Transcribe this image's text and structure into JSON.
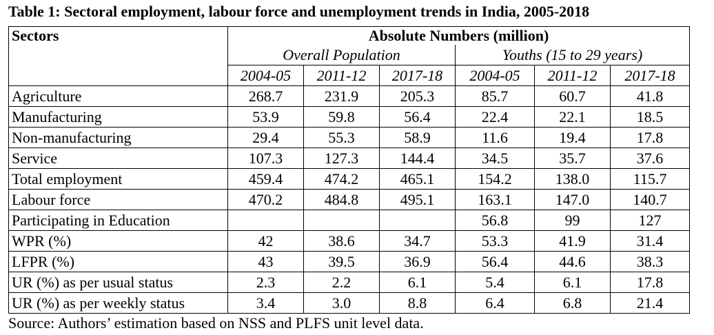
{
  "header": {
    "title": "Table 1: Sectoral employment, labour force and unemployment trends in India, 2005-2018"
  },
  "table": {
    "row_header": "Sectors",
    "group": "Absolute Numbers (million)",
    "subgroups": [
      "Overall Population",
      "Youths (15 to 29 years)"
    ],
    "years": [
      "2004-05",
      "2011-12",
      "2017-18",
      "2004-05",
      "2011-12",
      "2017-18"
    ],
    "rows": [
      {
        "label": "Agriculture",
        "values": [
          "268.7",
          "231.9",
          "205.3",
          "85.7",
          "60.7",
          "41.8"
        ]
      },
      {
        "label": "Manufacturing",
        "values": [
          "53.9",
          "59.8",
          "56.4",
          "22.4",
          "22.1",
          "18.5"
        ]
      },
      {
        "label": "Non-manufacturing",
        "values": [
          "29.4",
          "55.3",
          "58.9",
          "11.6",
          "19.4",
          "17.8"
        ]
      },
      {
        "label": "Service",
        "values": [
          "107.3",
          "127.3",
          "144.4",
          "34.5",
          "35.7",
          "37.6"
        ]
      },
      {
        "label": "Total employment",
        "values": [
          "459.4",
          "474.2",
          "465.1",
          "154.2",
          "138.0",
          "115.7"
        ]
      },
      {
        "label": "Labour force",
        "values": [
          "470.2",
          "484.8",
          "495.1",
          "163.1",
          "147.0",
          "140.7"
        ]
      },
      {
        "label": "Participating in Education",
        "values": [
          null,
          null,
          null,
          "56.8",
          "99",
          "127"
        ]
      },
      {
        "label": "WPR (%)",
        "values": [
          "42",
          "38.6",
          "34.7",
          "53.3",
          "41.9",
          "31.4"
        ]
      },
      {
        "label": "LFPR (%)",
        "values": [
          "43",
          "39.5",
          "36.9",
          "56.4",
          "44.6",
          "38.3"
        ]
      },
      {
        "label": "UR (%) as per usual status",
        "values": [
          "2.3",
          "2.2",
          "6.1",
          "5.4",
          "6.1",
          "17.8"
        ]
      },
      {
        "label": "UR (%) as per weekly status",
        "values": [
          "3.4",
          "3.0",
          "8.8",
          "6.4",
          "6.8",
          "21.4"
        ]
      }
    ]
  },
  "footer": {
    "source": "Source: Authors’ estimation based on NSS and PLFS unit level data."
  }
}
